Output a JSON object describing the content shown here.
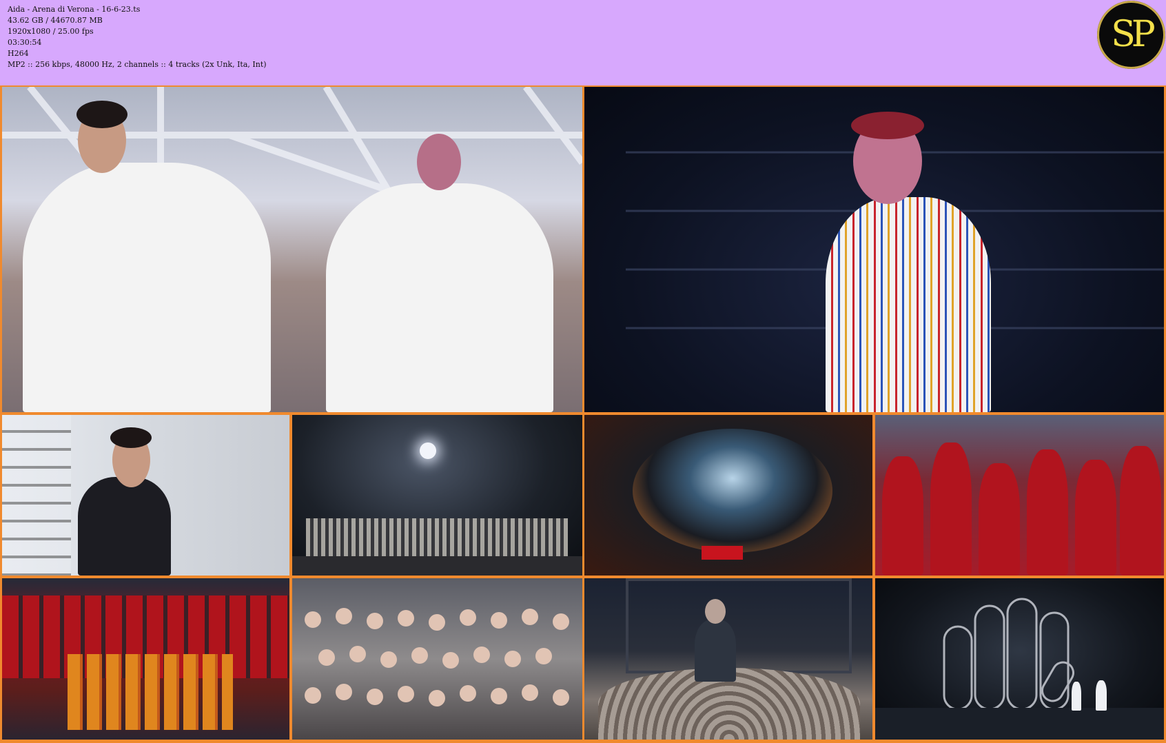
{
  "file_info": {
    "name": "Aida - Arena di Verona - 16-6-23.ts",
    "size": "43.62 GB / 44670.87 MB",
    "video": "1920x1080 / 25.00 fps",
    "duration": "03:30:54",
    "codec": "H264",
    "audio": "MP2 :: 256 kbps, 48000 Hz, 2 channels :: 4 tracks (2x Unk, Ita, Int)"
  },
  "logo": {
    "text": "SP",
    "colors": {
      "ring": "#c8a94a",
      "letters": "#f4e04a",
      "fill": "#0a0a0a"
    }
  },
  "colors": {
    "header_bg": "#d7a8fd",
    "frame_border": "#f08a2e"
  },
  "frames": [
    {
      "id": "frame-1"
    },
    {
      "id": "frame-2"
    },
    {
      "id": "frame-3"
    },
    {
      "id": "frame-4"
    },
    {
      "id": "frame-5"
    },
    {
      "id": "frame-6"
    },
    {
      "id": "frame-7"
    },
    {
      "id": "frame-8"
    },
    {
      "id": "frame-9"
    },
    {
      "id": "frame-10"
    }
  ]
}
